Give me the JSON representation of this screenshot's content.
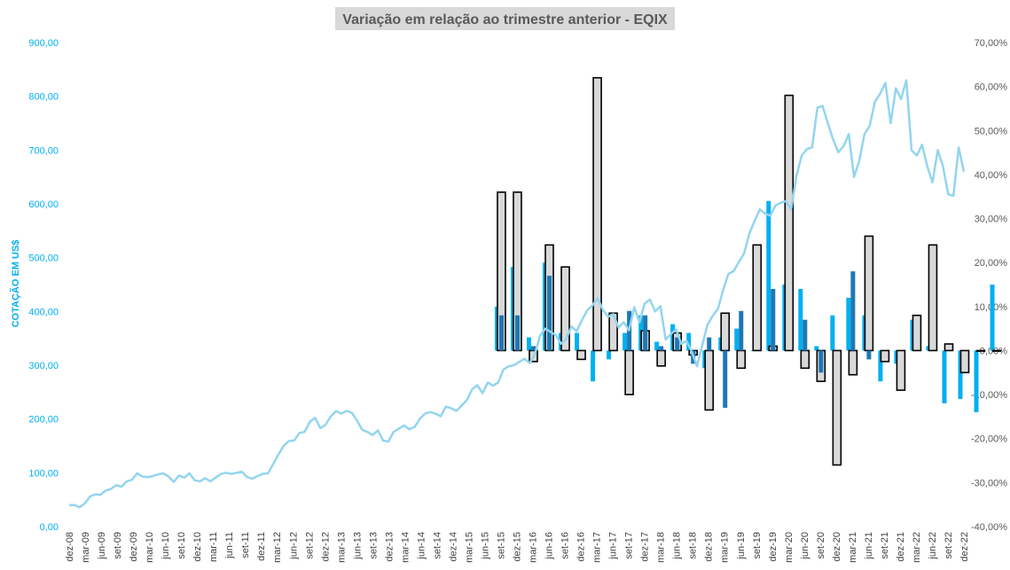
{
  "chart_data": {
    "type": "bar+line",
    "title": "Variação em relação ao trimestre anterior - EQIX",
    "ylabel_left": "COTAÇÃO EM US$",
    "ylim_left": [
      0,
      900
    ],
    "ylim_right": [
      -0.4,
      0.7
    ],
    "left_ticks": [
      "0,00",
      "100,00",
      "200,00",
      "300,00",
      "400,00",
      "500,00",
      "600,00",
      "700,00",
      "800,00",
      "900,00"
    ],
    "right_ticks": [
      "-40,00%",
      "-30,00%",
      "-20,00%",
      "-10,00%",
      "0,00%",
      "10,00%",
      "20,00%",
      "30,00%",
      "40,00%",
      "50,00%",
      "60,00%",
      "70,00%"
    ],
    "x_labels": [
      "dez-08",
      "mar-09",
      "jun-09",
      "set-09",
      "dez-09",
      "mar-10",
      "jun-10",
      "set-10",
      "dez-10",
      "mar-11",
      "jun-11",
      "set-11",
      "dez-11",
      "mar-12",
      "jun-12",
      "set-12",
      "dez-12",
      "mar-13",
      "jun-13",
      "set-13",
      "dez-13",
      "mar-14",
      "jun-14",
      "set-14",
      "dez-14",
      "mar-15",
      "jun-15",
      "set-15",
      "dez-15",
      "mar-16",
      "jun-16",
      "set-16",
      "dez-16",
      "mar-17",
      "jun-17",
      "set-17",
      "dez-17",
      "mar-18",
      "jun-18",
      "set-18",
      "dez-18",
      "mar-19",
      "jun-19",
      "set-19",
      "dez-19",
      "mar-20",
      "jun-20",
      "set-20",
      "dez-20",
      "mar-21",
      "jun-21",
      "set-21",
      "dez-21",
      "mar-22",
      "jun-22",
      "set-22",
      "dez-22"
    ],
    "colors": {
      "price_line": "#93d5ef",
      "series_a": "#00b0f0",
      "series_b": "#1f77b4",
      "series_c_fill": "#d9d9d9",
      "series_c_stroke": "#000000"
    },
    "bar_start_index": 27,
    "series": [
      {
        "values": [
          0.1,
          0.19,
          0.03,
          0.2,
          0.04,
          0.04,
          -0.07,
          -0.02,
          0.04,
          0.08,
          0.02,
          0.06,
          0.04,
          -0.04,
          0.03,
          0.05,
          0.0,
          0.34,
          0.15,
          0.14,
          0.01,
          0.08,
          0.12,
          0.08,
          -0.07,
          -0.03,
          0.07,
          0.01,
          -0.12,
          -0.11,
          -0.14,
          0.15
        ]
      },
      {
        "values": [
          0.08,
          0.08,
          0.01,
          0.17,
          0.0,
          0.0,
          0.0,
          0.0,
          0.09,
          0.08,
          0.01,
          0.03,
          -0.03,
          0.03,
          -0.13,
          0.09,
          0.0,
          0.14,
          0.0,
          0.07,
          -0.05,
          0.0,
          0.18,
          -0.02,
          0.0,
          0.0,
          0.0,
          0.0,
          0.0,
          0.0,
          0.0,
          0.0
        ]
      },
      {
        "values": [
          0.36,
          0.36,
          -0.025,
          0.24,
          0.19,
          -0.02,
          0.62,
          0.085,
          -0.1,
          0.045,
          -0.035,
          0.04,
          -0.01,
          -0.135,
          0.085,
          -0.04,
          0.24,
          0.01,
          0.58,
          -0.04,
          -0.07,
          -0.26,
          -0.055,
          0.26,
          -0.025,
          -0.09,
          0.08,
          0.24,
          0.015,
          -0.05,
          0.0,
          0.0
        ]
      }
    ],
    "price": [
      40,
      40,
      36,
      43,
      56,
      60,
      59,
      67,
      70,
      77,
      74,
      84,
      87,
      99,
      93,
      92,
      94,
      97,
      99,
      93,
      83,
      95,
      91,
      99,
      86,
      84,
      90,
      84,
      91,
      98,
      100,
      98,
      100,
      102,
      92,
      89,
      94,
      98,
      99,
      116,
      134,
      150,
      159,
      160,
      174,
      176,
      195,
      202,
      183,
      189,
      205,
      215,
      210,
      215,
      212,
      197,
      180,
      176,
      170,
      179,
      160,
      158,
      176,
      182,
      188,
      181,
      185,
      200,
      210,
      213,
      210,
      205,
      223,
      220,
      215,
      225,
      235,
      255,
      263,
      248,
      268,
      262,
      268,
      292,
      298,
      300,
      306,
      312,
      304,
      320,
      355,
      368,
      362,
      356,
      340,
      349,
      372,
      363,
      384,
      402,
      411,
      425,
      403,
      390,
      395,
      370,
      380,
      365,
      408,
      380,
      415,
      422,
      400,
      410,
      348,
      358,
      366,
      340,
      345,
      325,
      298,
      338,
      375,
      392,
      405,
      440,
      470,
      475,
      492,
      508,
      545,
      568,
      590,
      582,
      578,
      597,
      602,
      605,
      590,
      652,
      690,
      702,
      705,
      779,
      782,
      750,
      720,
      696,
      707,
      730,
      650,
      680,
      730,
      745,
      790,
      805,
      825,
      750,
      815,
      795,
      830,
      700,
      690,
      710,
      670,
      640,
      700,
      670,
      618,
      615,
      705,
      660
    ]
  }
}
